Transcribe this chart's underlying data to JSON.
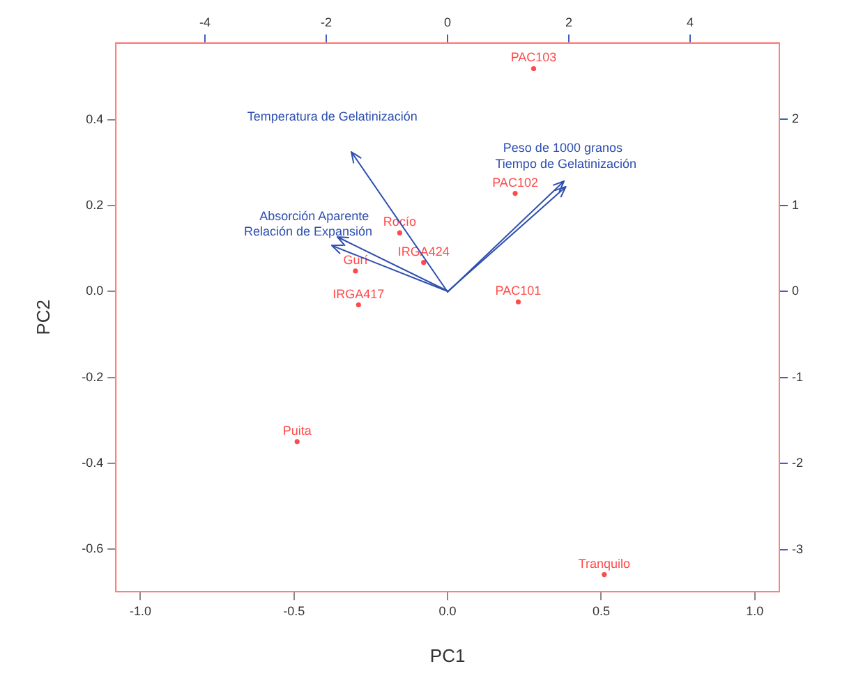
{
  "chart_data": {
    "type": "scatter",
    "xlabel": "PC1",
    "ylabel": "PC2",
    "xlim": [
      -1.08,
      1.08
    ],
    "ylim": [
      -0.7,
      0.58
    ],
    "x2lim": [
      -5.47,
      5.47
    ],
    "y2lim": [
      -3.49,
      2.89
    ],
    "xticks": [
      {
        "value": -1,
        "label": "-1.0"
      },
      {
        "value": -0.5,
        "label": "-0.5"
      },
      {
        "value": 0,
        "label": "0.0"
      },
      {
        "value": 0.5,
        "label": "0.5"
      },
      {
        "value": 1,
        "label": "1.0"
      }
    ],
    "yticks": [
      {
        "value": -0.6,
        "label": "-0.6"
      },
      {
        "value": -0.4,
        "label": "-0.4"
      },
      {
        "value": -0.2,
        "label": "-0.2"
      },
      {
        "value": 0,
        "label": "0.0"
      },
      {
        "value": 0.2,
        "label": "0.2"
      },
      {
        "value": 0.4,
        "label": "0.4"
      }
    ],
    "x2ticks": [
      -4,
      -2,
      0,
      2,
      4
    ],
    "y2ticks": [
      -3,
      -2,
      -1,
      0,
      1,
      2
    ],
    "grid": false,
    "legend": false,
    "marker": "circle",
    "annotations": [
      "Temperatura de Gelatinización",
      "Absorción Aparente",
      "Relación de Expansión",
      "Peso de 1000 granos",
      "Tiempo de Gelatinización"
    ],
    "series": [
      {
        "color": "#ff4a4a",
        "x": [
          0.28,
          0.22,
          -0.156,
          -0.078,
          -0.3,
          -0.29,
          0.23,
          -0.49,
          0.51
        ],
        "values": [
          0.52,
          0.229,
          0.137,
          0.068,
          0.048,
          -0.031,
          -0.024,
          -0.35,
          -0.66
        ],
        "value_labels": [
          "PAC103",
          "PAC102",
          "Rocío",
          "IRGA424",
          "Gurí",
          "IRGA417",
          "PAC101",
          "Puita",
          "Tranquilo"
        ]
      }
    ]
  }
}
